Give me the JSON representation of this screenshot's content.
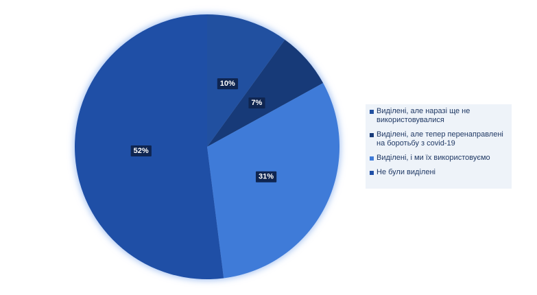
{
  "chart_data": {
    "type": "pie",
    "categories": [
      "Виділені, але наразі ще не використовувалися",
      "Виділені, але тепер перенаправлені на боротьбу з covid-19",
      "Виділені, і ми їх використовуємо",
      "Не були виділені"
    ],
    "values": [
      10,
      7,
      31,
      52
    ],
    "value_labels": [
      "10%",
      "7%",
      "31%",
      "52%"
    ],
    "colors": [
      "#2150a0",
      "#173a78",
      "#3f7bd8",
      "#1f4fa6"
    ],
    "legend": "right"
  }
}
